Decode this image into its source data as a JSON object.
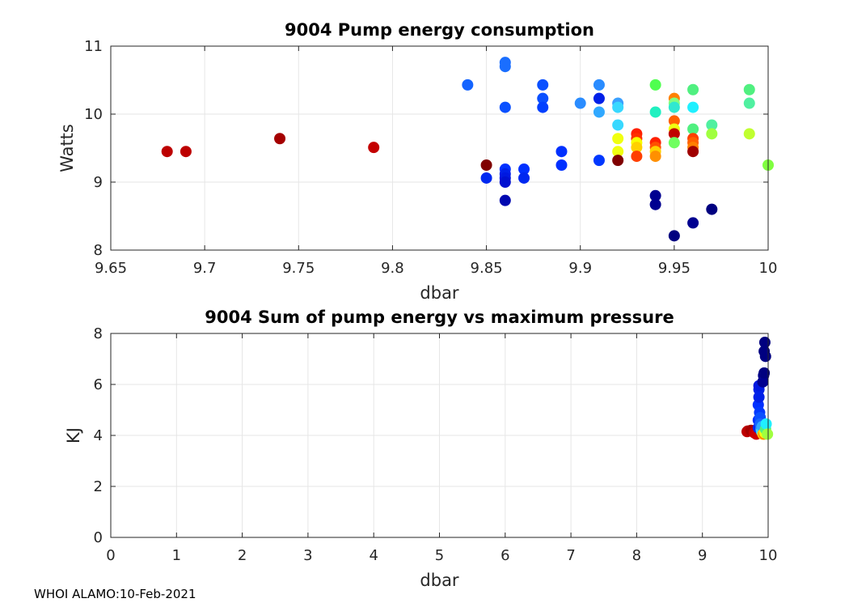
{
  "footer": "WHOI ALAMO:10-Feb-2021",
  "chart_data": [
    {
      "type": "scatter",
      "title": "9004 Pump energy consumption",
      "xlabel": "dbar",
      "ylabel": "Watts",
      "xlim": [
        9.65,
        10
      ],
      "ylim": [
        8,
        11
      ],
      "xticks": [
        9.65,
        9.7,
        9.75,
        9.8,
        9.85,
        9.9,
        9.95,
        10
      ],
      "xtick_labels": [
        "9.65",
        "9.7",
        "9.75",
        "9.8",
        "9.85",
        "9.9",
        "9.95",
        "10"
      ],
      "yticks": [
        8,
        9,
        10,
        11
      ],
      "ytick_labels": [
        "8",
        "9",
        "10",
        "11"
      ],
      "grid": true,
      "points": [
        {
          "x": 9.68,
          "y": 9.45,
          "c": "#bd0000"
        },
        {
          "x": 9.69,
          "y": 9.45,
          "c": "#bd0000"
        },
        {
          "x": 9.74,
          "y": 9.64,
          "c": "#a50000"
        },
        {
          "x": 9.79,
          "y": 9.51,
          "c": "#c40000"
        },
        {
          "x": 9.84,
          "y": 10.43,
          "c": "#1464ff"
        },
        {
          "x": 9.85,
          "y": 9.25,
          "c": "#800000"
        },
        {
          "x": 9.85,
          "y": 9.06,
          "c": "#0028f0"
        },
        {
          "x": 9.86,
          "y": 10.76,
          "c": "#1a6eff"
        },
        {
          "x": 9.86,
          "y": 10.7,
          "c": "#1a6eff"
        },
        {
          "x": 9.86,
          "y": 10.1,
          "c": "#0a50ff"
        },
        {
          "x": 9.86,
          "y": 9.19,
          "c": "#0030ff"
        },
        {
          "x": 9.86,
          "y": 9.12,
          "c": "#0020e8"
        },
        {
          "x": 9.86,
          "y": 9.06,
          "c": "#0018e0"
        },
        {
          "x": 9.86,
          "y": 9.0,
          "c": "#0010d0"
        },
        {
          "x": 9.86,
          "y": 8.73,
          "c": "#0008b0"
        },
        {
          "x": 9.87,
          "y": 9.19,
          "c": "#0030ff"
        },
        {
          "x": 9.87,
          "y": 9.06,
          "c": "#0028f0"
        },
        {
          "x": 9.88,
          "y": 10.43,
          "c": "#0a50ff"
        },
        {
          "x": 9.88,
          "y": 10.23,
          "c": "#0a50ff"
        },
        {
          "x": 9.88,
          "y": 10.1,
          "c": "#0040ff"
        },
        {
          "x": 9.89,
          "y": 9.45,
          "c": "#0030ff"
        },
        {
          "x": 9.89,
          "y": 9.25,
          "c": "#0030ff"
        },
        {
          "x": 9.9,
          "y": 10.16,
          "c": "#2a8cff"
        },
        {
          "x": 9.91,
          "y": 10.43,
          "c": "#2a8cff"
        },
        {
          "x": 9.91,
          "y": 10.23,
          "c": "#0020e8"
        },
        {
          "x": 9.91,
          "y": 10.03,
          "c": "#30a8ff"
        },
        {
          "x": 9.91,
          "y": 9.32,
          "c": "#0038ff"
        },
        {
          "x": 9.92,
          "y": 10.16,
          "c": "#3aa0ff"
        },
        {
          "x": 9.92,
          "y": 10.1,
          "c": "#38d8ff"
        },
        {
          "x": 9.92,
          "y": 9.84,
          "c": "#38d8ff"
        },
        {
          "x": 9.92,
          "y": 9.64,
          "c": "#f0ff10"
        },
        {
          "x": 9.92,
          "y": 9.45,
          "c": "#f0ff10"
        },
        {
          "x": 9.92,
          "y": 9.32,
          "c": "#800000"
        },
        {
          "x": 9.93,
          "y": 9.71,
          "c": "#ff2000"
        },
        {
          "x": 9.93,
          "y": 9.64,
          "c": "#ff3000"
        },
        {
          "x": 9.93,
          "y": 9.58,
          "c": "#f8ff00"
        },
        {
          "x": 9.93,
          "y": 9.51,
          "c": "#ffd000"
        },
        {
          "x": 9.93,
          "y": 9.38,
          "c": "#ff4000"
        },
        {
          "x": 9.94,
          "y": 10.43,
          "c": "#50ff50"
        },
        {
          "x": 9.94,
          "y": 10.03,
          "c": "#20f0c0"
        },
        {
          "x": 9.94,
          "y": 9.58,
          "c": "#ff2000"
        },
        {
          "x": 9.94,
          "y": 9.51,
          "c": "#ff5000"
        },
        {
          "x": 9.94,
          "y": 9.45,
          "c": "#ffd000"
        },
        {
          "x": 9.94,
          "y": 9.38,
          "c": "#ff9000"
        },
        {
          "x": 9.94,
          "y": 8.8,
          "c": "#000090"
        },
        {
          "x": 9.94,
          "y": 8.67,
          "c": "#000090"
        },
        {
          "x": 9.95,
          "y": 10.23,
          "c": "#ff8000"
        },
        {
          "x": 9.95,
          "y": 10.16,
          "c": "#80ff80"
        },
        {
          "x": 9.95,
          "y": 10.1,
          "c": "#30e8d0"
        },
        {
          "x": 9.95,
          "y": 9.9,
          "c": "#ff6000"
        },
        {
          "x": 9.95,
          "y": 9.78,
          "c": "#f0ff10"
        },
        {
          "x": 9.95,
          "y": 9.71,
          "c": "#c00000"
        },
        {
          "x": 9.95,
          "y": 9.58,
          "c": "#70ff60"
        },
        {
          "x": 9.95,
          "y": 8.21,
          "c": "#000080"
        },
        {
          "x": 9.96,
          "y": 10.36,
          "c": "#50f080"
        },
        {
          "x": 9.96,
          "y": 10.1,
          "c": "#20f0ff"
        },
        {
          "x": 9.96,
          "y": 9.78,
          "c": "#50f080"
        },
        {
          "x": 9.96,
          "y": 9.64,
          "c": "#ff4000"
        },
        {
          "x": 9.96,
          "y": 9.58,
          "c": "#ff6000"
        },
        {
          "x": 9.96,
          "y": 9.51,
          "c": "#ff8000"
        },
        {
          "x": 9.96,
          "y": 9.45,
          "c": "#a00000"
        },
        {
          "x": 9.96,
          "y": 8.4,
          "c": "#000090"
        },
        {
          "x": 9.97,
          "y": 9.84,
          "c": "#50f0a0"
        },
        {
          "x": 9.97,
          "y": 9.71,
          "c": "#a0ff40"
        },
        {
          "x": 9.97,
          "y": 8.6,
          "c": "#000080"
        },
        {
          "x": 9.99,
          "y": 10.36,
          "c": "#50f080"
        },
        {
          "x": 9.99,
          "y": 10.16,
          "c": "#50f0a0"
        },
        {
          "x": 9.99,
          "y": 9.71,
          "c": "#c0ff30"
        },
        {
          "x": 10.0,
          "y": 9.25,
          "c": "#80ff40"
        }
      ]
    },
    {
      "type": "scatter",
      "title": "9004 Sum of pump energy vs maximum pressure",
      "xlabel": "dbar",
      "ylabel": "KJ",
      "xlim": [
        0,
        10
      ],
      "ylim": [
        0,
        8
      ],
      "xticks": [
        0,
        1,
        2,
        3,
        4,
        5,
        6,
        7,
        8,
        9,
        10
      ],
      "xtick_labels": [
        "0",
        "1",
        "2",
        "3",
        "4",
        "5",
        "6",
        "7",
        "8",
        "9",
        "10"
      ],
      "yticks": [
        0,
        2,
        4,
        6,
        8
      ],
      "ytick_labels": [
        "0",
        "2",
        "4",
        "6",
        "8"
      ],
      "grid": true,
      "points": [
        {
          "x": 9.68,
          "y": 4.15,
          "c": "#bd0000"
        },
        {
          "x": 9.69,
          "y": 4.17,
          "c": "#bd0000"
        },
        {
          "x": 9.74,
          "y": 4.2,
          "c": "#a50000"
        },
        {
          "x": 9.79,
          "y": 4.1,
          "c": "#c40000"
        },
        {
          "x": 9.82,
          "y": 4.05,
          "c": "#d00000"
        },
        {
          "x": 9.85,
          "y": 4.3,
          "c": "#0028f0"
        },
        {
          "x": 9.85,
          "y": 4.6,
          "c": "#0030ff"
        },
        {
          "x": 9.85,
          "y": 5.2,
          "c": "#0030ff"
        },
        {
          "x": 9.86,
          "y": 5.5,
          "c": "#0020e8"
        },
        {
          "x": 9.86,
          "y": 5.8,
          "c": "#0020e8"
        },
        {
          "x": 9.86,
          "y": 5.95,
          "c": "#0018e0"
        },
        {
          "x": 9.87,
          "y": 4.9,
          "c": "#0038ff"
        },
        {
          "x": 9.88,
          "y": 4.7,
          "c": "#0a50ff"
        },
        {
          "x": 9.88,
          "y": 4.45,
          "c": "#1464ff"
        },
        {
          "x": 9.89,
          "y": 4.25,
          "c": "#2a8cff"
        },
        {
          "x": 9.9,
          "y": 4.15,
          "c": "#38d8ff"
        },
        {
          "x": 9.91,
          "y": 4.35,
          "c": "#30a8ff"
        },
        {
          "x": 9.92,
          "y": 4.05,
          "c": "#ffd000"
        },
        {
          "x": 9.92,
          "y": 6.1,
          "c": "#000090"
        },
        {
          "x": 9.93,
          "y": 6.35,
          "c": "#000090"
        },
        {
          "x": 9.94,
          "y": 6.45,
          "c": "#000080"
        },
        {
          "x": 9.94,
          "y": 7.3,
          "c": "#000080"
        },
        {
          "x": 9.95,
          "y": 7.65,
          "c": "#000080"
        },
        {
          "x": 9.96,
          "y": 7.1,
          "c": "#000080"
        },
        {
          "x": 9.94,
          "y": 4.05,
          "c": "#ff8000"
        },
        {
          "x": 9.95,
          "y": 4.1,
          "c": "#f0ff10"
        },
        {
          "x": 9.96,
          "y": 4.25,
          "c": "#50f080"
        },
        {
          "x": 9.97,
          "y": 4.45,
          "c": "#20f0ff"
        },
        {
          "x": 9.99,
          "y": 4.05,
          "c": "#a0ff40"
        }
      ]
    }
  ]
}
